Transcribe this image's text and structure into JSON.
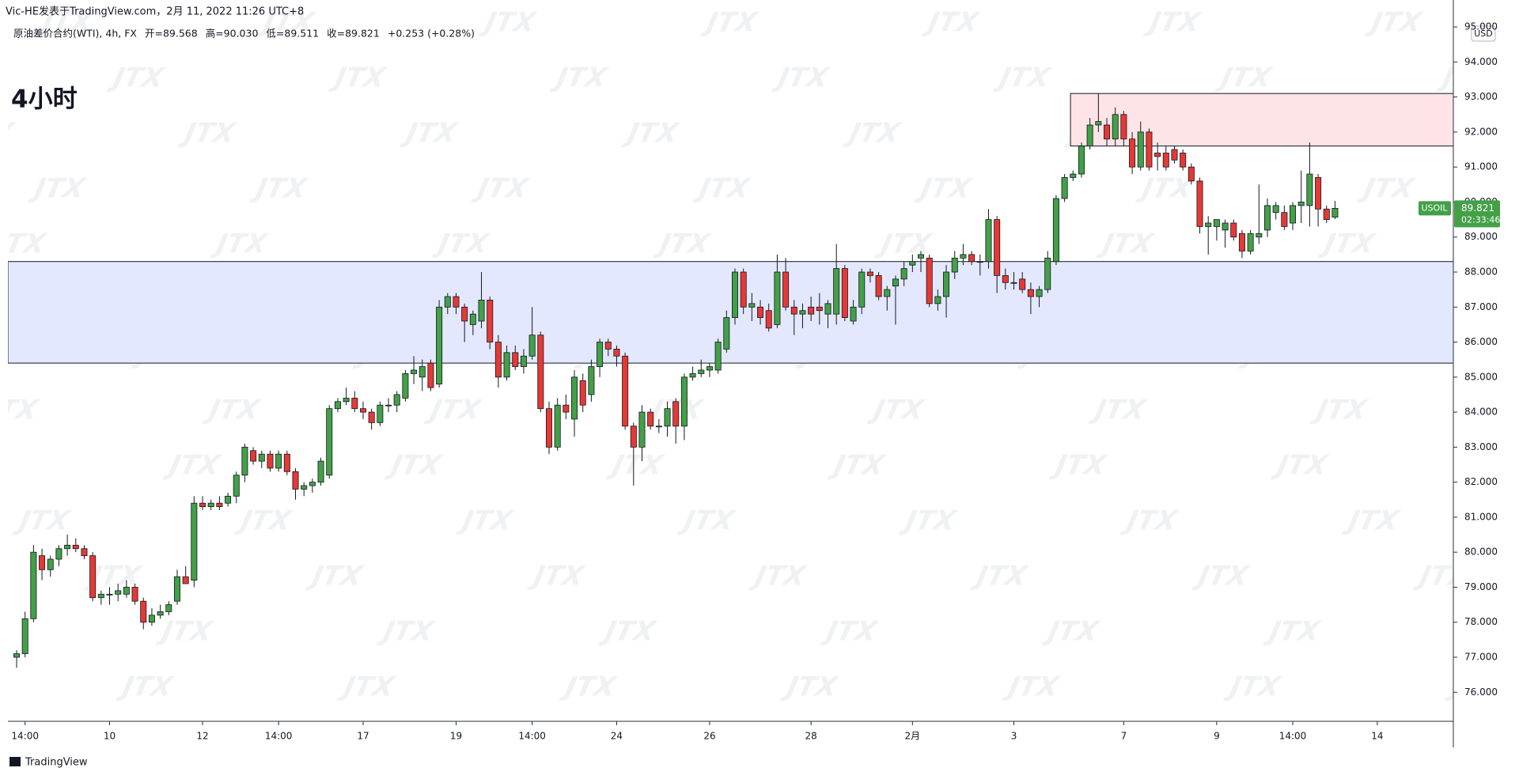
{
  "chart_data": {
    "type": "candlestick",
    "source_note": "Vic-HE发表于TradingView.com，2月 11, 2022 11:26 UTC+8",
    "legend": "原油差价合约(WTI), 4h, FX",
    "open_label": "开=89.568",
    "high_label": "高=90.030",
    "low_label": "低=89.511",
    "close_label": "收=89.821",
    "change_label": "+0.253 (+0.28%)",
    "title": "4小时",
    "currency": "USD",
    "symbol": "USOIL",
    "last_price": 89.821,
    "countdown": "02:33:46",
    "brand": "TradingView",
    "watermark": "JTX",
    "up_color": "#43a047",
    "down_color": "#e53935",
    "ylim": [
      75.17,
      95.77
    ],
    "yticks": [
      {
        "value": 76,
        "label": "76.000"
      },
      {
        "value": 77,
        "label": "77.000"
      },
      {
        "value": 78,
        "label": "78.000"
      },
      {
        "value": 79,
        "label": "79.000"
      },
      {
        "value": 80,
        "label": "80.000"
      },
      {
        "value": 81,
        "label": "81.000"
      },
      {
        "value": 82,
        "label": "82.000"
      },
      {
        "value": 83,
        "label": "83.000"
      },
      {
        "value": 84,
        "label": "84.000"
      },
      {
        "value": 85,
        "label": "85.000"
      },
      {
        "value": 86,
        "label": "86.000"
      },
      {
        "value": 87,
        "label": "87.000"
      },
      {
        "value": 88,
        "label": "88.000"
      },
      {
        "value": 89,
        "label": "89.000"
      },
      {
        "value": 90,
        "label": "90.000"
      },
      {
        "value": 91,
        "label": "91.000"
      },
      {
        "value": 92,
        "label": "92.000"
      },
      {
        "value": 93,
        "label": "93.000"
      },
      {
        "value": 94,
        "label": "94.000"
      },
      {
        "value": 95,
        "label": "95.000"
      }
    ],
    "xlim": [
      -1.03,
      170
    ],
    "xticks": [
      {
        "value": 1,
        "label": "14:00"
      },
      {
        "value": 11,
        "label": "10"
      },
      {
        "value": 22,
        "label": "12"
      },
      {
        "value": 31,
        "label": "14:00"
      },
      {
        "value": 41,
        "label": "17"
      },
      {
        "value": 52,
        "label": "19"
      },
      {
        "value": 61,
        "label": "14:00"
      },
      {
        "value": 71,
        "label": "24"
      },
      {
        "value": 82,
        "label": "26"
      },
      {
        "value": 94,
        "label": "28"
      },
      {
        "value": 106,
        "label": "2月"
      },
      {
        "value": 118,
        "label": "3"
      },
      {
        "value": 131,
        "label": "7"
      },
      {
        "value": 142,
        "label": "9"
      },
      {
        "value": 151,
        "label": "14:00"
      },
      {
        "value": 161,
        "label": "14"
      }
    ],
    "zones": [
      {
        "low": 85.4,
        "high": 88.3,
        "x_start": -1.03,
        "color": "#e3e8ff"
      },
      {
        "low": 91.6,
        "high": 93.1,
        "x_start": 124.7,
        "color": "#ffe4e7"
      }
    ],
    "candles": [
      [
        77.0,
        77.2,
        76.7,
        77.1
      ],
      [
        77.1,
        78.3,
        77.0,
        78.1
      ],
      [
        78.1,
        80.2,
        78.0,
        80.0
      ],
      [
        79.9,
        80.1,
        79.2,
        79.5
      ],
      [
        79.5,
        79.9,
        79.3,
        79.8
      ],
      [
        79.8,
        80.2,
        79.6,
        80.1
      ],
      [
        80.1,
        80.5,
        79.9,
        80.2
      ],
      [
        80.2,
        80.4,
        80.0,
        80.1
      ],
      [
        80.1,
        80.2,
        79.8,
        79.9
      ],
      [
        79.9,
        80.0,
        78.6,
        78.7
      ],
      [
        78.7,
        78.9,
        78.5,
        78.8
      ],
      [
        78.8,
        79.0,
        78.5,
        78.8
      ],
      [
        78.8,
        79.1,
        78.6,
        78.9
      ],
      [
        78.8,
        79.2,
        78.7,
        79.0
      ],
      [
        79.0,
        79.1,
        78.5,
        78.6
      ],
      [
        78.6,
        78.7,
        77.8,
        78.0
      ],
      [
        78.0,
        78.4,
        77.9,
        78.2
      ],
      [
        78.2,
        78.5,
        78.1,
        78.3
      ],
      [
        78.3,
        78.6,
        78.2,
        78.5
      ],
      [
        78.6,
        79.5,
        78.5,
        79.3
      ],
      [
        79.3,
        79.6,
        79.1,
        79.1
      ],
      [
        79.2,
        81.6,
        79.0,
        81.4
      ],
      [
        81.4,
        81.6,
        81.2,
        81.3
      ],
      [
        81.3,
        81.5,
        81.2,
        81.4
      ],
      [
        81.4,
        81.6,
        81.2,
        81.3
      ],
      [
        81.4,
        81.7,
        81.3,
        81.6
      ],
      [
        81.6,
        82.3,
        81.4,
        82.2
      ],
      [
        82.2,
        83.1,
        82.0,
        83.0
      ],
      [
        82.9,
        83.0,
        82.5,
        82.6
      ],
      [
        82.6,
        82.9,
        82.4,
        82.8
      ],
      [
        82.8,
        82.9,
        82.3,
        82.4
      ],
      [
        82.4,
        82.9,
        82.3,
        82.8
      ],
      [
        82.8,
        82.9,
        82.2,
        82.3
      ],
      [
        82.3,
        82.4,
        81.5,
        81.8
      ],
      [
        81.8,
        82.0,
        81.6,
        81.9
      ],
      [
        81.9,
        82.1,
        81.7,
        82.0
      ],
      [
        82.0,
        82.7,
        81.9,
        82.6
      ],
      [
        82.2,
        84.2,
        82.1,
        84.1
      ],
      [
        84.1,
        84.4,
        84.0,
        84.3
      ],
      [
        84.3,
        84.7,
        84.2,
        84.4
      ],
      [
        84.4,
        84.6,
        84.0,
        84.1
      ],
      [
        84.1,
        84.3,
        83.8,
        84.0
      ],
      [
        84.0,
        84.1,
        83.5,
        83.7
      ],
      [
        83.7,
        84.3,
        83.6,
        84.2
      ],
      [
        84.2,
        84.4,
        84.0,
        84.2
      ],
      [
        84.2,
        84.6,
        84.0,
        84.5
      ],
      [
        84.4,
        85.2,
        84.3,
        85.1
      ],
      [
        85.1,
        85.6,
        84.8,
        85.2
      ],
      [
        85.0,
        85.5,
        84.6,
        85.3
      ],
      [
        85.4,
        85.5,
        84.6,
        84.7
      ],
      [
        84.8,
        87.2,
        84.7,
        87.0
      ],
      [
        87.0,
        87.4,
        86.8,
        87.3
      ],
      [
        87.3,
        87.4,
        86.8,
        87.0
      ],
      [
        87.0,
        87.1,
        86.0,
        86.6
      ],
      [
        86.5,
        86.9,
        86.2,
        86.8
      ],
      [
        86.6,
        88.0,
        86.4,
        87.2
      ],
      [
        87.2,
        87.3,
        85.8,
        86.0
      ],
      [
        86.0,
        86.2,
        84.7,
        85.0
      ],
      [
        85.0,
        85.9,
        84.9,
        85.7
      ],
      [
        85.7,
        85.9,
        85.2,
        85.3
      ],
      [
        85.3,
        85.8,
        85.1,
        85.6
      ],
      [
        85.6,
        87.0,
        85.5,
        86.2
      ],
      [
        86.2,
        86.3,
        84.0,
        84.1
      ],
      [
        84.1,
        84.3,
        82.8,
        83.0
      ],
      [
        83.0,
        84.4,
        82.9,
        84.2
      ],
      [
        84.2,
        84.5,
        83.8,
        84.0
      ],
      [
        83.8,
        85.2,
        83.3,
        85.0
      ],
      [
        84.9,
        85.1,
        84.0,
        84.2
      ],
      [
        84.5,
        85.5,
        84.3,
        85.3
      ],
      [
        85.3,
        86.1,
        85.0,
        86.0
      ],
      [
        86.0,
        86.1,
        85.6,
        85.8
      ],
      [
        85.8,
        85.9,
        85.3,
        85.6
      ],
      [
        85.6,
        85.7,
        83.5,
        83.6
      ],
      [
        83.6,
        83.7,
        81.9,
        83.0
      ],
      [
        83.0,
        84.2,
        82.6,
        84.0
      ],
      [
        84.0,
        84.1,
        83.5,
        83.6
      ],
      [
        83.6,
        83.8,
        83.4,
        83.6
      ],
      [
        83.6,
        84.3,
        83.3,
        84.1
      ],
      [
        84.3,
        84.4,
        83.1,
        83.6
      ],
      [
        83.6,
        85.1,
        83.2,
        85.0
      ],
      [
        85.0,
        85.3,
        84.9,
        85.1
      ],
      [
        85.1,
        85.5,
        85.0,
        85.2
      ],
      [
        85.2,
        85.4,
        85.0,
        85.3
      ],
      [
        85.2,
        86.1,
        85.1,
        86.0
      ],
      [
        85.8,
        86.9,
        85.7,
        86.7
      ],
      [
        86.7,
        88.1,
        86.5,
        88.0
      ],
      [
        88.0,
        88.1,
        86.8,
        87.0
      ],
      [
        87.0,
        87.4,
        86.6,
        87.1
      ],
      [
        87.0,
        87.2,
        86.5,
        86.7
      ],
      [
        86.9,
        87.1,
        86.3,
        86.4
      ],
      [
        86.5,
        88.5,
        86.4,
        88.0
      ],
      [
        88.0,
        88.4,
        86.9,
        87.0
      ],
      [
        87.0,
        87.2,
        86.2,
        86.8
      ],
      [
        86.8,
        87.1,
        86.4,
        86.9
      ],
      [
        87.0,
        87.3,
        86.6,
        86.8
      ],
      [
        87.0,
        87.4,
        86.5,
        86.9
      ],
      [
        86.8,
        87.2,
        86.4,
        87.1
      ],
      [
        86.8,
        88.8,
        86.5,
        88.1
      ],
      [
        88.1,
        88.2,
        86.6,
        86.7
      ],
      [
        86.6,
        87.2,
        86.5,
        87.0
      ],
      [
        87.0,
        88.1,
        86.8,
        88.0
      ],
      [
        88.0,
        88.1,
        87.7,
        87.9
      ],
      [
        87.9,
        88.0,
        87.2,
        87.3
      ],
      [
        87.3,
        87.6,
        86.9,
        87.5
      ],
      [
        87.6,
        87.9,
        86.5,
        87.8
      ],
      [
        87.8,
        88.3,
        87.6,
        88.1
      ],
      [
        88.2,
        88.5,
        88.0,
        88.3
      ],
      [
        88.4,
        88.6,
        88.0,
        88.5
      ],
      [
        88.4,
        88.5,
        87.0,
        87.1
      ],
      [
        87.1,
        87.5,
        86.9,
        87.3
      ],
      [
        87.3,
        88.2,
        86.7,
        88.0
      ],
      [
        88.0,
        88.6,
        87.8,
        88.4
      ],
      [
        88.4,
        88.8,
        88.2,
        88.5
      ],
      [
        88.5,
        88.6,
        88.2,
        88.3
      ],
      [
        88.3,
        88.5,
        87.9,
        88.3
      ],
      [
        88.3,
        89.8,
        88.1,
        89.5
      ],
      [
        89.5,
        89.6,
        87.4,
        87.9
      ],
      [
        87.9,
        88.1,
        87.5,
        87.7
      ],
      [
        87.7,
        88.0,
        87.5,
        87.7
      ],
      [
        87.8,
        88.0,
        87.4,
        87.5
      ],
      [
        87.5,
        87.7,
        86.8,
        87.3
      ],
      [
        87.3,
        87.6,
        87.0,
        87.5
      ],
      [
        87.5,
        88.6,
        87.4,
        88.4
      ],
      [
        88.3,
        90.2,
        88.2,
        90.1
      ],
      [
        90.1,
        90.8,
        90.0,
        90.7
      ],
      [
        90.7,
        90.9,
        90.6,
        90.8
      ],
      [
        90.8,
        91.7,
        90.7,
        91.6
      ],
      [
        91.6,
        92.4,
        91.5,
        92.2
      ],
      [
        92.2,
        93.1,
        92.0,
        92.3
      ],
      [
        92.2,
        92.4,
        91.6,
        91.8
      ],
      [
        91.8,
        92.7,
        91.6,
        92.5
      ],
      [
        92.5,
        92.6,
        91.6,
        91.8
      ],
      [
        91.8,
        92.0,
        90.8,
        91.0
      ],
      [
        91.0,
        92.3,
        90.9,
        92.0
      ],
      [
        92.0,
        92.1,
        90.9,
        91.0
      ],
      [
        91.4,
        91.7,
        90.9,
        91.3
      ],
      [
        91.4,
        91.6,
        90.9,
        91.0
      ],
      [
        91.5,
        91.6,
        91.1,
        91.2
      ],
      [
        91.4,
        91.5,
        90.9,
        91.0
      ],
      [
        91.0,
        91.1,
        90.5,
        90.6
      ],
      [
        90.6,
        90.7,
        89.1,
        89.3
      ],
      [
        89.3,
        89.6,
        88.5,
        89.4
      ],
      [
        89.3,
        89.5,
        88.9,
        89.5
      ],
      [
        89.2,
        89.5,
        88.7,
        89.4
      ],
      [
        89.4,
        89.5,
        88.9,
        89.0
      ],
      [
        89.1,
        89.2,
        88.4,
        88.6
      ],
      [
        88.6,
        89.2,
        88.5,
        89.1
      ],
      [
        89.0,
        90.5,
        88.8,
        89.1
      ],
      [
        89.2,
        90.1,
        89.0,
        89.9
      ],
      [
        89.7,
        90.0,
        89.5,
        89.9
      ],
      [
        89.7,
        89.9,
        89.2,
        89.3
      ],
      [
        89.4,
        90.0,
        89.2,
        89.9
      ],
      [
        89.9,
        90.9,
        89.4,
        90.0
      ],
      [
        89.9,
        91.7,
        89.3,
        90.8
      ],
      [
        90.7,
        90.8,
        89.3,
        89.8
      ],
      [
        89.8,
        89.9,
        89.4,
        89.5
      ],
      [
        89.568,
        90.03,
        89.511,
        89.821
      ]
    ]
  }
}
